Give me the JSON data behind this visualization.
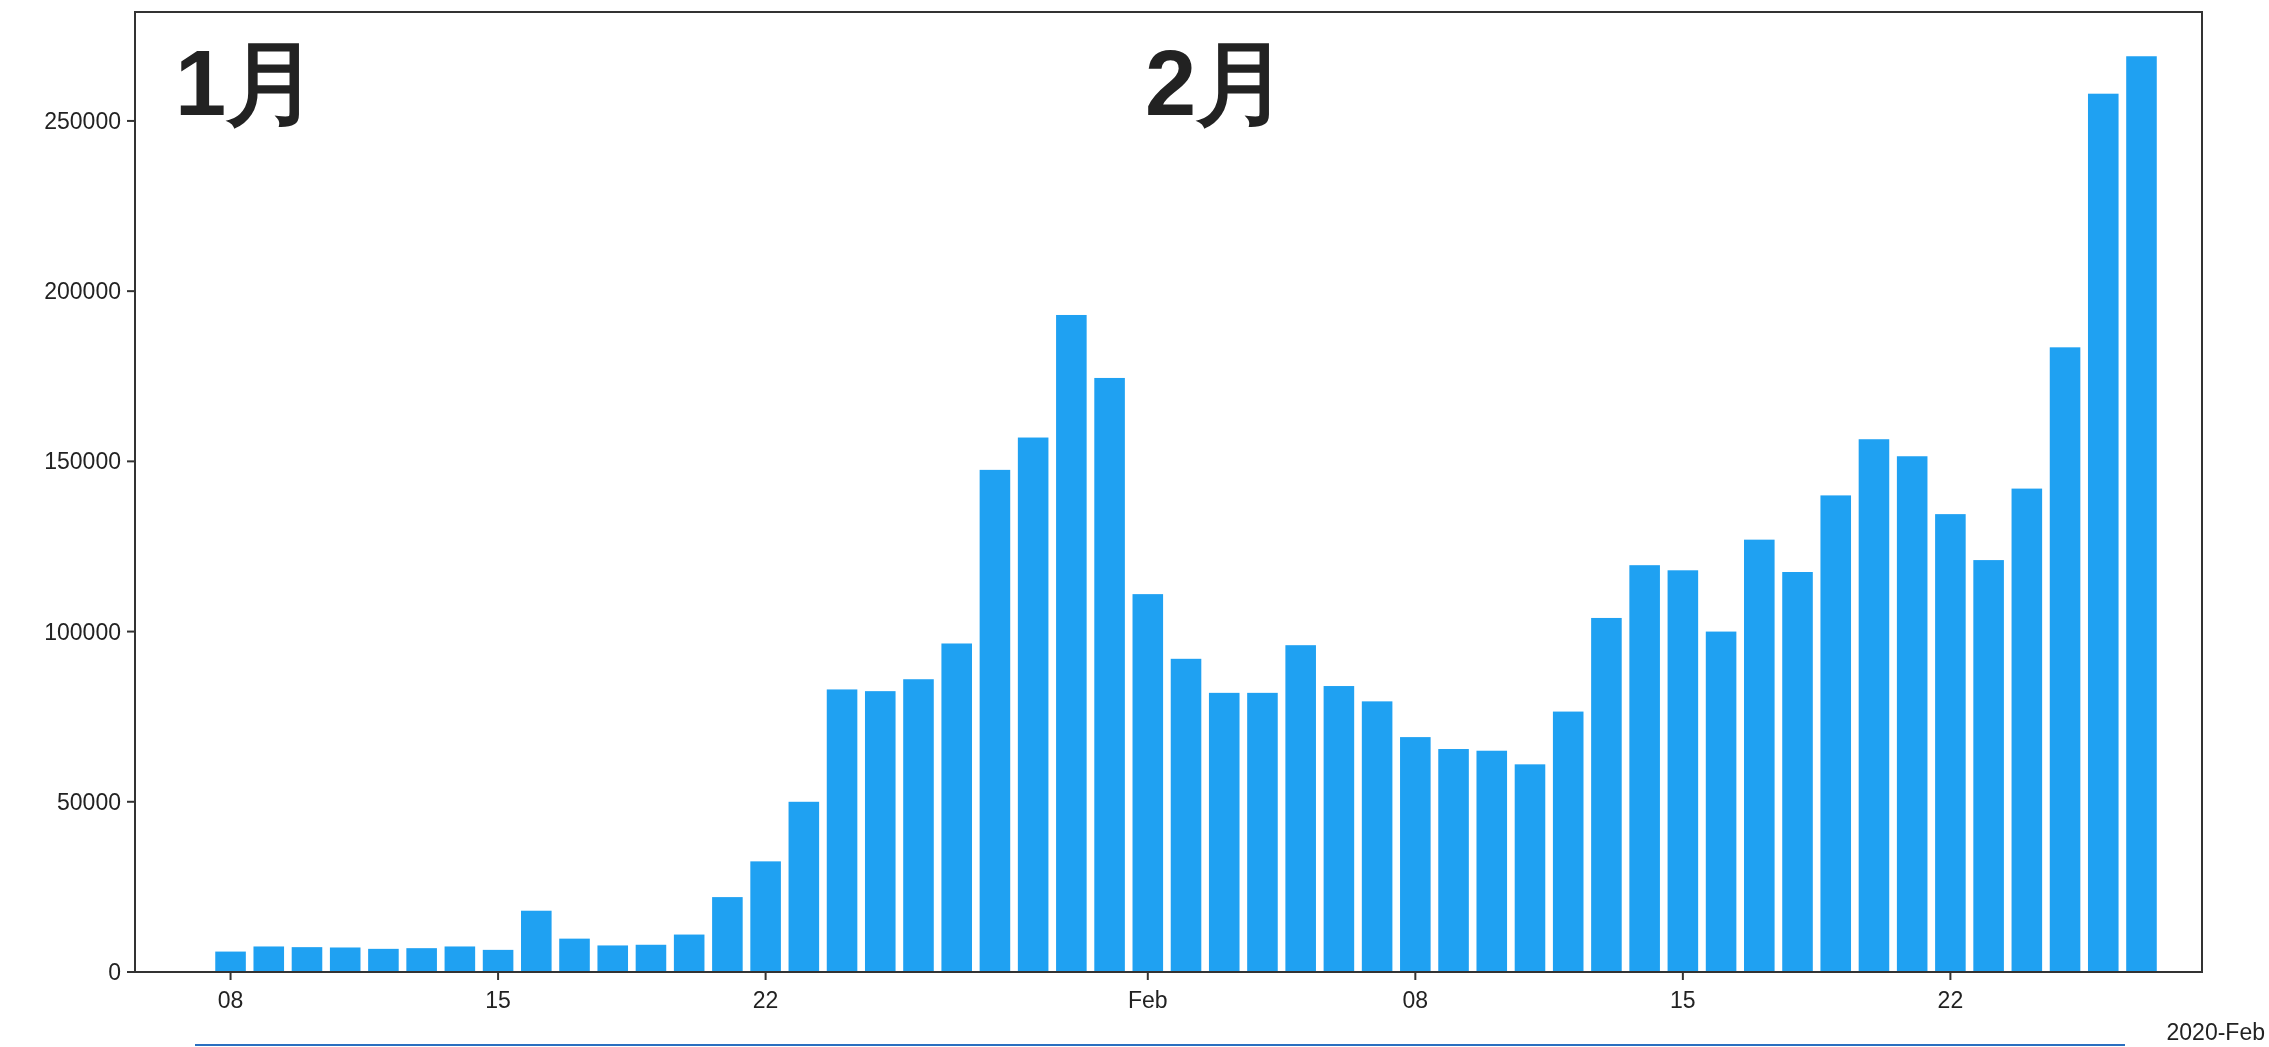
{
  "chart_data": {
    "type": "bar",
    "color": "#1fa1f2",
    "x": [
      "2020-01-08",
      "2020-01-09",
      "2020-01-10",
      "2020-01-11",
      "2020-01-12",
      "2020-01-13",
      "2020-01-14",
      "2020-01-15",
      "2020-01-16",
      "2020-01-17",
      "2020-01-18",
      "2020-01-19",
      "2020-01-20",
      "2020-01-21",
      "2020-01-22",
      "2020-01-23",
      "2020-01-24",
      "2020-01-25",
      "2020-01-26",
      "2020-01-27",
      "2020-01-28",
      "2020-01-29",
      "2020-01-30",
      "2020-01-31",
      "2020-02-01",
      "2020-02-02",
      "2020-02-03",
      "2020-02-04",
      "2020-02-05",
      "2020-02-06",
      "2020-02-07",
      "2020-02-08",
      "2020-02-09",
      "2020-02-10",
      "2020-02-11",
      "2020-02-12",
      "2020-02-13",
      "2020-02-14",
      "2020-02-15",
      "2020-02-16",
      "2020-02-17",
      "2020-02-18",
      "2020-02-19",
      "2020-02-20",
      "2020-02-21",
      "2020-02-22",
      "2020-02-23",
      "2020-02-24",
      "2020-02-25",
      "2020-02-26",
      "2020-02-27"
    ],
    "values": [
      6000,
      7500,
      7300,
      7200,
      6800,
      7000,
      7500,
      6500,
      18000,
      9800,
      7800,
      8000,
      11000,
      22000,
      32500,
      50000,
      83000,
      82500,
      86000,
      96500,
      147500,
      157000,
      193000,
      174500,
      111000,
      92000,
      82000,
      82000,
      96000,
      84000,
      79500,
      69000,
      65500,
      65000,
      61000,
      76500,
      104000,
      119500,
      118000,
      100000,
      127000,
      117500,
      140000,
      156500,
      151500,
      134500,
      121000,
      142000,
      183500,
      258000,
      269000
    ],
    "xlim": [
      "2020-01-05T12:00",
      "2020-02-28T14:00"
    ],
    "xticks": [
      {
        "value": "2020-01-08",
        "label": "08"
      },
      {
        "value": "2020-01-15",
        "label": "15"
      },
      {
        "value": "2020-01-22",
        "label": "22"
      },
      {
        "value": "2020-02-01",
        "label": "Feb"
      },
      {
        "value": "2020-02-08",
        "label": "08"
      },
      {
        "value": "2020-02-15",
        "label": "15"
      },
      {
        "value": "2020-02-22",
        "label": "22"
      }
    ],
    "ylim": [
      0,
      282000
    ],
    "yticks": [
      0,
      50000,
      100000,
      150000,
      200000,
      250000
    ],
    "annotations": [
      "1月",
      "2月",
      "2020-Feb"
    ]
  }
}
